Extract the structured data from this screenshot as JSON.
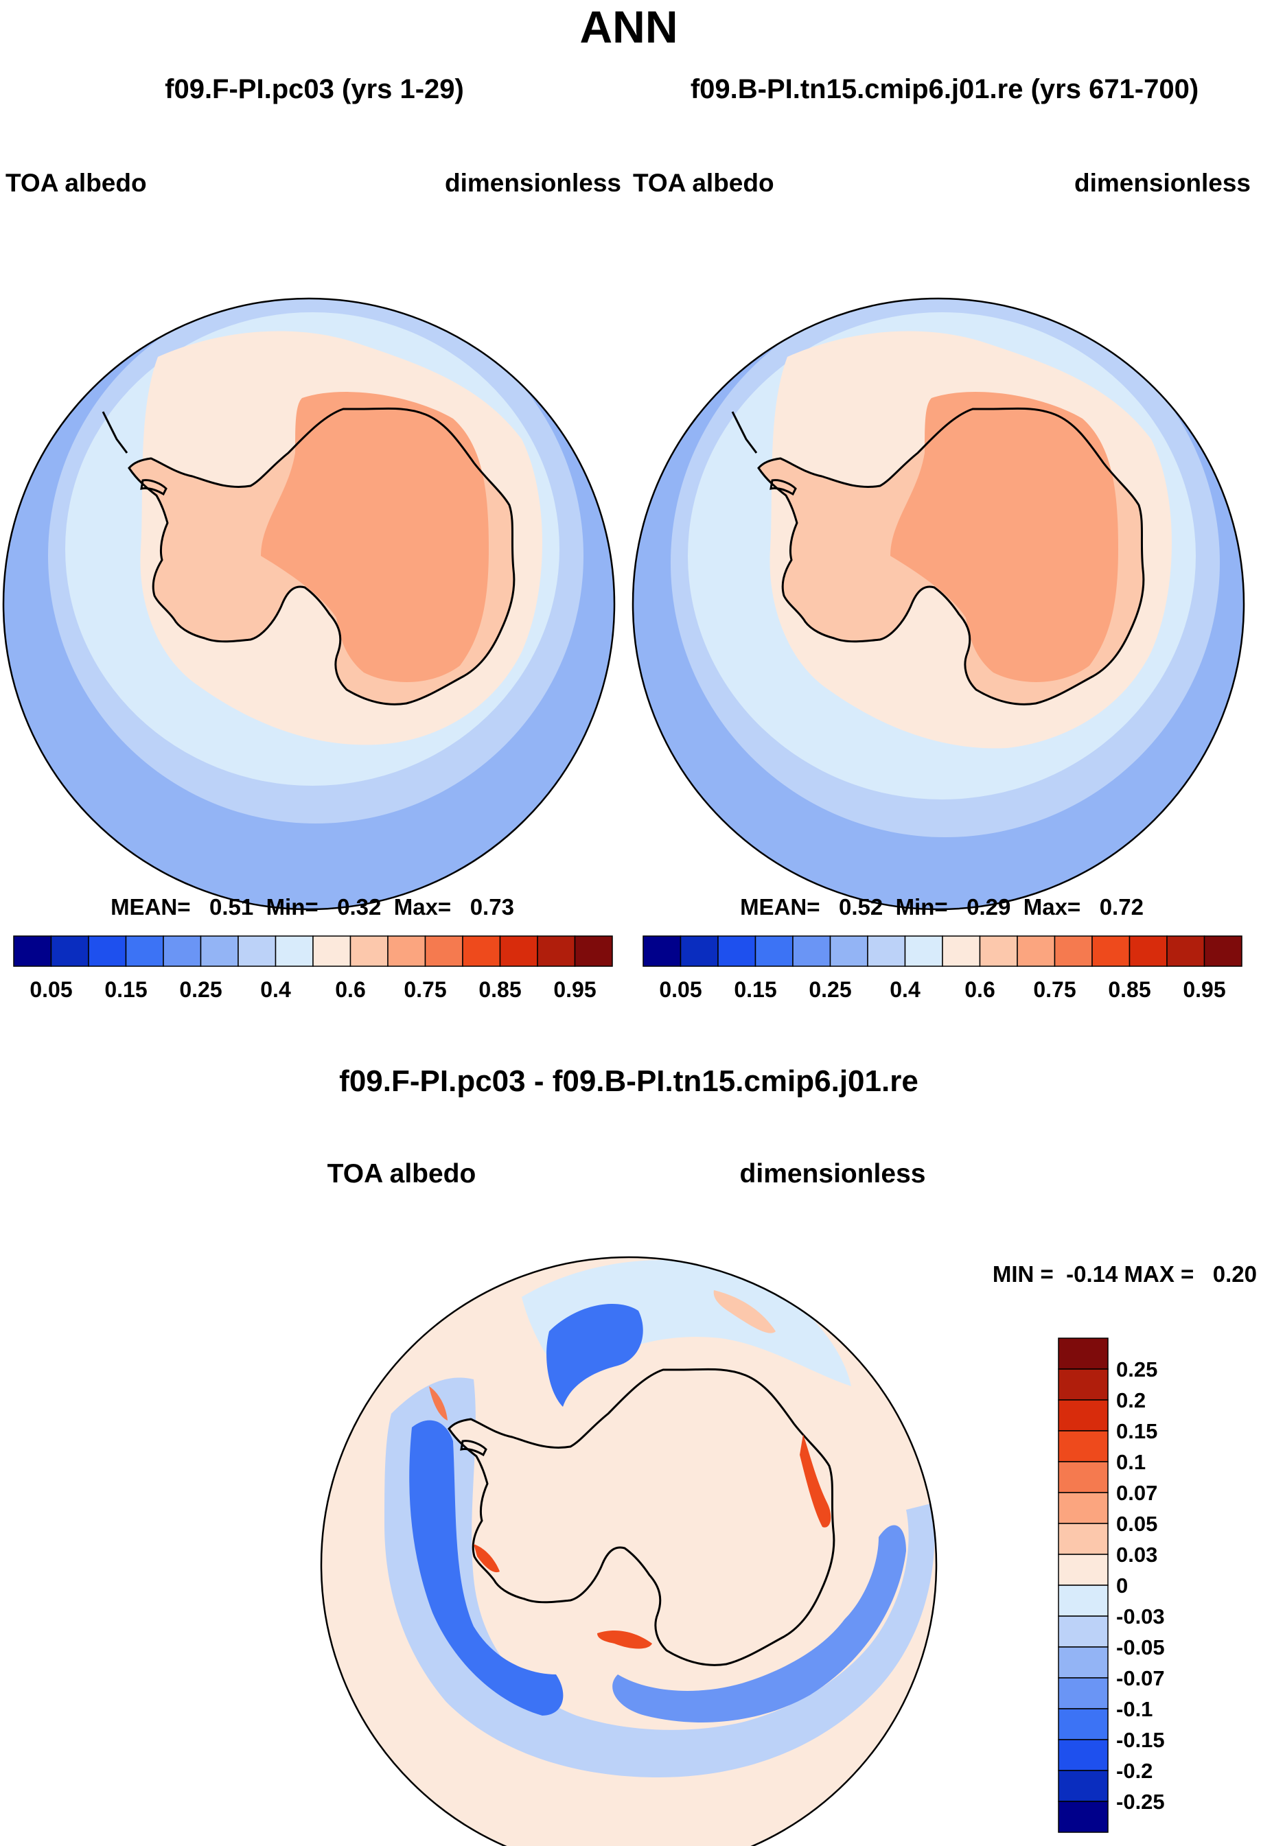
{
  "figure": {
    "title": "ANN",
    "variable": "TOA albedo",
    "units": "dimensionless"
  },
  "panels": [
    {
      "case": "f09.F-PI.pc03 (yrs 1-29)",
      "left_label": "TOA albedo",
      "right_label": "dimensionless",
      "stats_text": "MEAN=   0.51  Min=   0.32  Max=   0.73"
    },
    {
      "case": "f09.B-PI.tn15.cmip6.j01.re (yrs 671-700)",
      "left_label": "TOA albedo",
      "right_label": "dimensionless",
      "stats_text": "MEAN=   0.52  Min=   0.29  Max=   0.72"
    },
    {
      "case": "f09.F-PI.pc03 - f09.B-PI.tn15.cmip6.j01.re",
      "left_label": "TOA albedo",
      "right_label": "dimensionless",
      "stats_text": "MIN =  -0.14 MAX =   0.20"
    }
  ],
  "chart_data": [
    {
      "type": "heatmap",
      "projection": "south-polar-stereographic",
      "title": "f09.F-PI.pc03 (yrs 1-29)",
      "variable": "TOA albedo",
      "units": "dimensionless",
      "mean": 0.51,
      "min": 0.32,
      "max": 0.73,
      "colorbar": {
        "orientation": "horizontal",
        "levels": [
          0.05,
          0.1,
          0.15,
          0.2,
          0.25,
          0.3,
          0.4,
          0.5,
          0.6,
          0.7,
          0.75,
          0.8,
          0.85,
          0.9,
          0.95
        ],
        "tick_labels": [
          "0.05",
          "0.15",
          "0.25",
          "0.4",
          "0.6",
          "0.75",
          "0.85",
          "0.95"
        ],
        "colors": [
          "#00008b",
          "#0a2dbf",
          "#1e50ee",
          "#3c73f5",
          "#6a95f5",
          "#93b4f5",
          "#bcd2f8",
          "#d8ebfb",
          "#fce9dc",
          "#fcc8ac",
          "#fba57f",
          "#f57a4f",
          "#ee4a1c",
          "#d82c0c",
          "#b01e0c",
          "#7e0b0b"
        ]
      }
    },
    {
      "type": "heatmap",
      "projection": "south-polar-stereographic",
      "title": "f09.B-PI.tn15.cmip6.j01.re (yrs 671-700)",
      "variable": "TOA albedo",
      "units": "dimensionless",
      "mean": 0.52,
      "min": 0.29,
      "max": 0.72,
      "colorbar": {
        "orientation": "horizontal",
        "levels": [
          0.05,
          0.1,
          0.15,
          0.2,
          0.25,
          0.3,
          0.4,
          0.5,
          0.6,
          0.7,
          0.75,
          0.8,
          0.85,
          0.9,
          0.95
        ],
        "tick_labels": [
          "0.05",
          "0.15",
          "0.25",
          "0.4",
          "0.6",
          "0.75",
          "0.85",
          "0.95"
        ],
        "colors": [
          "#00008b",
          "#0a2dbf",
          "#1e50ee",
          "#3c73f5",
          "#6a95f5",
          "#93b4f5",
          "#bcd2f8",
          "#d8ebfb",
          "#fce9dc",
          "#fcc8ac",
          "#fba57f",
          "#f57a4f",
          "#ee4a1c",
          "#d82c0c",
          "#b01e0c",
          "#7e0b0b"
        ]
      }
    },
    {
      "type": "heatmap",
      "projection": "south-polar-stereographic",
      "title": "f09.F-PI.pc03 - f09.B-PI.tn15.cmip6.j01.re",
      "variable": "TOA albedo",
      "units": "dimensionless",
      "min": -0.14,
      "max": 0.2,
      "colorbar": {
        "orientation": "vertical",
        "tick_labels": [
          "0.25",
          "0.2",
          "0.15",
          "0.1",
          "0.07",
          "0.05",
          "0.03",
          "0",
          "-0.03",
          "-0.05",
          "-0.07",
          "-0.1",
          "-0.15",
          "-0.2",
          "-0.25"
        ],
        "colors": [
          "#7e0b0b",
          "#b01e0c",
          "#d82c0c",
          "#ee4a1c",
          "#f57a4f",
          "#fba57f",
          "#fcc8ac",
          "#fce9dc",
          "#d8ebfb",
          "#bcd2f8",
          "#93b4f5",
          "#6a95f5",
          "#3c73f5",
          "#1e50ee",
          "#0a2dbf",
          "#00008b"
        ]
      }
    }
  ],
  "colors": {
    "land_high": "#fba57f",
    "land_low": "#fcc8ac",
    "ice_pale": "#fce9dc",
    "ocean_pale": "#d8ebfb",
    "ocean_mid": "#bcd2f8",
    "ocean_deep": "#93b4f5",
    "coast": "#000000"
  }
}
